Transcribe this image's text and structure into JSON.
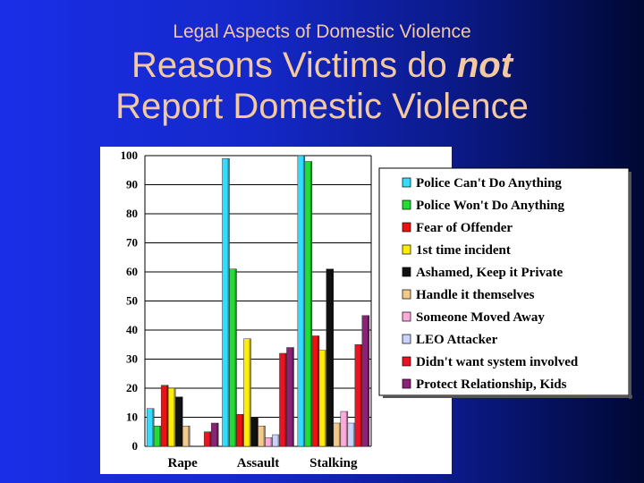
{
  "slide": {
    "subtitle": "Legal Aspects of Domestic Violence",
    "title_line1_pre": "Reasons Victims do ",
    "title_line1_emph": "not",
    "title_line2": "Report Domestic Violence"
  },
  "colors": {
    "plot_bg": "#ffffff",
    "gridline": "#000000",
    "text": "#000000"
  },
  "chart_data": {
    "type": "bar",
    "categories": [
      "Rape",
      "Assault",
      "Stalking"
    ],
    "ylim": [
      0,
      100
    ],
    "yticks": [
      0,
      10,
      20,
      30,
      40,
      50,
      60,
      70,
      80,
      90,
      100
    ],
    "grid": true,
    "legend_position": "right",
    "series": [
      {
        "name": "Police Can't Do Anything",
        "color": "#33ddff",
        "values": [
          13,
          99,
          100
        ]
      },
      {
        "name": "Police Won't Do Anything",
        "color": "#22dd33",
        "values": [
          7,
          61,
          98
        ]
      },
      {
        "name": "Fear of Offender",
        "color": "#ee1111",
        "values": [
          21,
          11,
          38
        ]
      },
      {
        "name": "1st time incident",
        "color": "#ffee00",
        "values": [
          20,
          37,
          33
        ]
      },
      {
        "name": "Ashamed, Keep it Private",
        "color": "#111111",
        "values": [
          17,
          10,
          61
        ]
      },
      {
        "name": "Handle it themselves",
        "color": "#f5c98a",
        "values": [
          7,
          7,
          8
        ]
      },
      {
        "name": "Someone Moved Away",
        "color": "#ffaadd",
        "values": [
          0,
          3,
          12
        ]
      },
      {
        "name": "LEO Attacker",
        "color": "#c8d4ff",
        "values": [
          0,
          4,
          8
        ]
      },
      {
        "name": "Didn't want system involved",
        "color": "#ee1122",
        "values": [
          5,
          32,
          35
        ]
      },
      {
        "name": "Protect Relationship, Kids",
        "color": "#8a2277",
        "values": [
          8,
          34,
          45
        ]
      }
    ]
  }
}
